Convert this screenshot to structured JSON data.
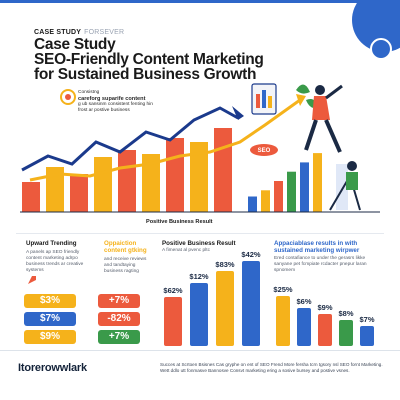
{
  "header": {
    "tag_line": "CASE STUDY",
    "tag_secondary": "FORSEVER",
    "title_line1": "Case Study",
    "title_line2": "SEO-Friendly Content Marketing",
    "title_line3": "for Sustained Business Growth"
  },
  "hero": {
    "caption_line1": "Consistng",
    "caption_bold": "careforg suparife content",
    "caption_line3": "g ub sansinm consistent fenting hin",
    "caption_line4": "frost ar postive business",
    "seo_label": "SEO",
    "axis_label": "Positive Business Result",
    "bar_colors": [
      "#ec5a3d",
      "#f5b21b",
      "#ec5a3d",
      "#f5b21b",
      "#ec5a3d",
      "#f5b21b",
      "#ec5a3d",
      "#f5b21b",
      "#ec5a3d"
    ],
    "bar_levels": [
      0.3,
      0.45,
      0.38,
      0.55,
      0.62,
      0.58,
      0.74,
      0.7,
      0.84
    ],
    "right_bar_colors": [
      "#2f67c9",
      "#f5b21b",
      "#ec5a3d",
      "#3a9a4a",
      "#2f67c9",
      "#f5b21b"
    ],
    "right_bar_levels": [
      0.25,
      0.35,
      0.5,
      0.65,
      0.8,
      0.95
    ]
  },
  "upward": {
    "title": "Upward Trending",
    "sub_line1": "A panels ap SEO friendly",
    "sub_line2": "content marketing adrpo",
    "sub_line3": "business trends ar creative",
    "sub_line4": "systems",
    "badges": [
      {
        "left": "$3%",
        "right": "+7%"
      },
      {
        "left": "$7%",
        "right": "-82%"
      },
      {
        "left": "$9%",
        "right": "+7%"
      }
    ]
  },
  "optimization": {
    "title_line1": "Oppaiction",
    "title_line2": "content gtking",
    "sub_line1": "and receive reviews",
    "sub_line2": "and tandtaying",
    "sub_line3": "business ragting"
  },
  "positive": {
    "title": "Positive Business Result",
    "sub": "A fimenat al pvenc pltc",
    "values": [
      "$62%",
      "$12%",
      "$83%",
      "$42%"
    ],
    "levels": [
      0.55,
      0.7,
      0.83,
      0.95
    ],
    "colors": [
      "#ec5a3d",
      "#2f67c9",
      "#f5b21b",
      "#2f67c9"
    ]
  },
  "appreciable": {
    "title_line1": "Appaciablase results in with",
    "title_line2": "sustained marketing wirpwer",
    "sub_line1": "Ered contafiance to under the gerasrs likke",
    "sub_line2": "sanyane pet fcmpiate rcdacter pnepur laran",
    "sub_line3": "spnomem",
    "values": [
      "$25%",
      "$6%",
      "$9%",
      "$8%",
      "$7%"
    ],
    "levels": [
      0.8,
      0.62,
      0.52,
      0.42,
      0.32
    ],
    "colors": [
      "#f5b21b",
      "#2f67c9",
      "#ec5a3d",
      "#3a9a4a",
      "#2f67c9"
    ]
  },
  "footer": {
    "brand": "Itorerowwlark",
    "note_line1": "Succes at Scrtoen Bsisnes Cas gryphe on ent of SEO Frend More fersha tcrn tgsory nsl SEO fornt Marketing.",
    "note_line2": "Wett ddlo utt fonmasve Bannosve Consvt marketing ering a sosive bursey and postive vsnes."
  },
  "colors": {
    "red": "#ec5a3d",
    "yellow": "#f5b21b",
    "blue": "#2f67c9",
    "green": "#3a9a4a",
    "navy": "#14233a"
  }
}
